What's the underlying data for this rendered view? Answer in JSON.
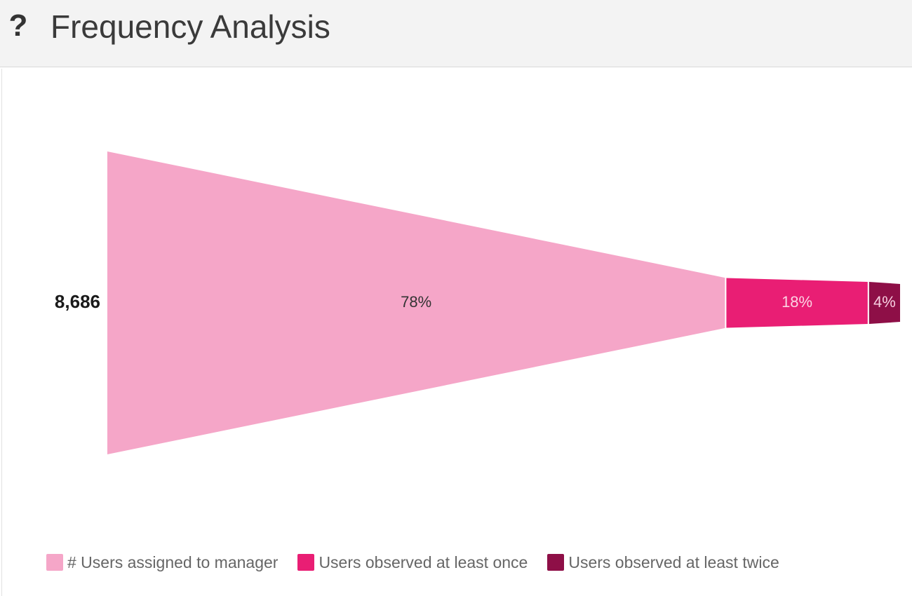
{
  "header": {
    "help_icon": "question-mark-icon",
    "title": "Frequency Analysis"
  },
  "chart_data": {
    "type": "funnel",
    "title": "Frequency Analysis",
    "total_label": "8,686",
    "total": 8686,
    "orientation": "horizontal",
    "series": [
      {
        "name": "# Users assigned to manager",
        "value": 78,
        "label": "78%",
        "color": "#f5a6c8",
        "label_color": "#333333"
      },
      {
        "name": "Users observed at least once",
        "value": 18,
        "label": "18%",
        "color": "#e91e74",
        "label_color": "#fbd3e3"
      },
      {
        "name": "Users observed at least twice",
        "value": 4,
        "label": "4%",
        "color": "#8e0f47",
        "label_color": "#f7cfe0"
      }
    ],
    "legend_position": "bottom-left",
    "grid": false
  }
}
